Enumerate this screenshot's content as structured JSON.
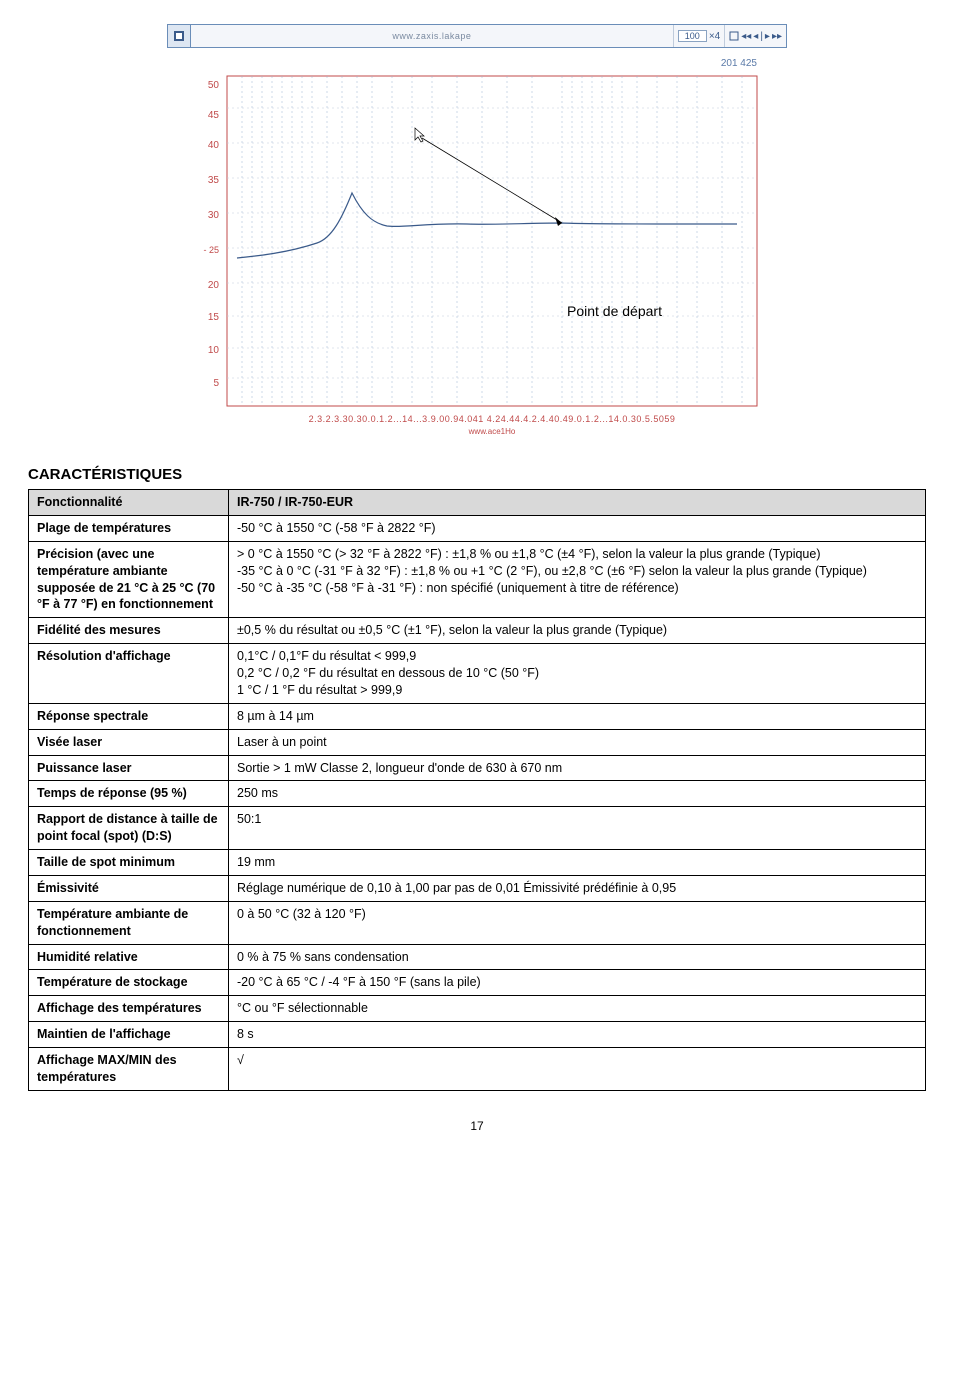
{
  "chart": {
    "toolbar_text": "www.zaxis.lakape",
    "page_box": "100",
    "right_group": "×4",
    "coord_label": "201 425",
    "arrow_label": "Point de départ"
  },
  "section_title": "CARACTÉRISTIQUES",
  "table": {
    "header": {
      "c1": "Fonctionnalité",
      "c2": "IR-750 / IR-750-EUR"
    },
    "rows": [
      {
        "c1": "Plage de températures",
        "c2": "-50 °C à 1550 °C (-58 °F à 2822 °F)"
      },
      {
        "c1": "Précision (avec une température ambiante supposée de 21 °C à 25 °C (70 °F à 77 °F) en fonctionnement",
        "c2": "> 0 °C à 1550 °C (> 32 °F à 2822 °F) : ±1,8 % ou ±1,8 °C (±4 °F), selon la valeur la plus grande (Typique)\n-35 °C à 0 °C (-31 °F à 32 °F) : ±1,8 % ou +1 °C (2 °F), ou ±2,8 °C (±6 °F) selon la valeur la plus grande (Typique)\n-50 °C à -35 °C (-58 °F à -31 °F) : non spécifié (uniquement à titre de référence)"
      },
      {
        "c1": "Fidélité des mesures",
        "c2": "±0,5 % du résultat ou ±0,5 °C (±1 °F), selon la valeur la plus grande (Typique)"
      },
      {
        "c1": "Résolution d'affichage",
        "c2": "0,1°C / 0,1°F du résultat < 999,9\n0,2 °C / 0,2 °F du résultat en dessous de 10 °C (50 °F)\n1 °C / 1 °F du résultat > 999,9"
      },
      {
        "c1": "Réponse spectrale",
        "c2": "8 µm à 14 µm"
      },
      {
        "c1": "Visée laser",
        "c2": "Laser à un point"
      },
      {
        "c1": "Puissance laser",
        "c2": "Sortie > 1 mW Classe 2, longueur d'onde de 630 à 670 nm"
      },
      {
        "c1": "Temps de réponse (95 %)",
        "c2": "250 ms"
      },
      {
        "c1": "Rapport de distance à taille de point focal (spot) (D:S)",
        "c2": "50:1"
      },
      {
        "c1": "Taille de spot minimum",
        "c2": "19 mm"
      },
      {
        "c1": "Émissivité",
        "c2": "Réglage numérique de 0,10 à 1,00 par pas de 0,01 Émissivité prédéfinie à 0,95"
      },
      {
        "c1": "Température ambiante de fonctionnement",
        "c2": "0 à 50 °C (32 à 120 °F)"
      },
      {
        "c1": "Humidité relative",
        "c2": "0 % à 75 % sans condensation"
      },
      {
        "c1": "Température de stockage",
        "c2": "-20 °C à 65 °C / -4 °F à 150 °F (sans la pile)"
      },
      {
        "c1": "Affichage des températures",
        "c2": "°C ou °F sélectionnable"
      },
      {
        "c1": "Maintien de l'affichage",
        "c2": "8 s"
      },
      {
        "c1": "Affichage MAX/MIN des températures",
        "c2": "√"
      }
    ]
  },
  "page_number": "17"
}
